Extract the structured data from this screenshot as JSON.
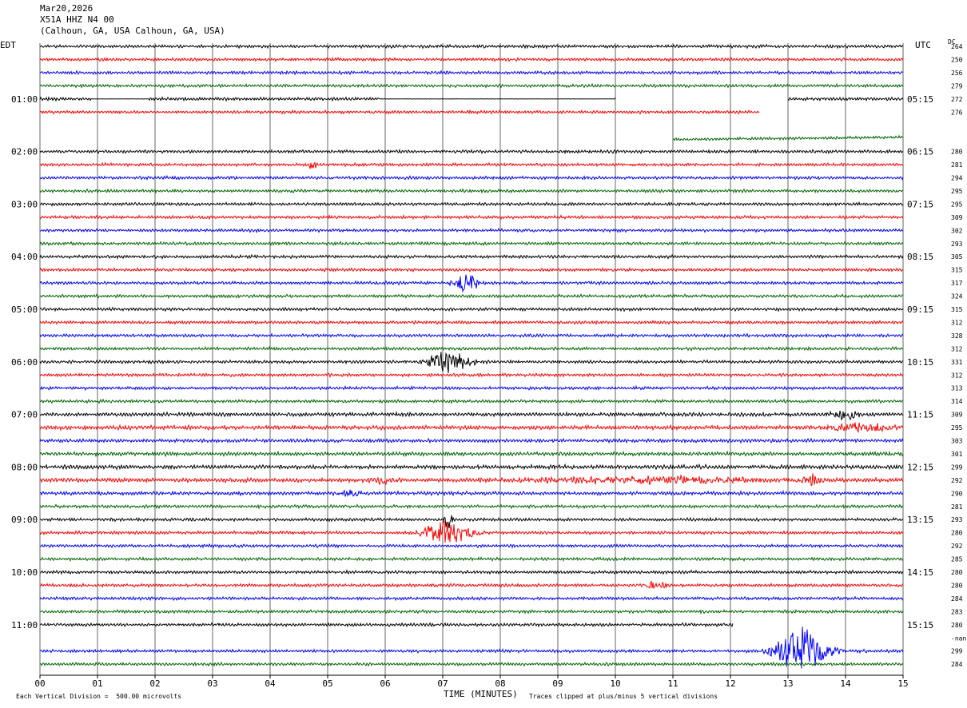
{
  "header": {
    "date": "Mar20,2026",
    "station": "X51A HHZ N4 00",
    "location": "(Calhoun, GA, USA Calhoun, GA, USA)"
  },
  "labels": {
    "left_tz": "EDT",
    "right_tz": "UTC",
    "dc_header": "DC",
    "xlabel": "TIME (MINUTES)",
    "scale_note": "Each Vertical Division =  500.00 microvolts",
    "clip_note": "Traces clipped at plus/minus 5 vertical divisions"
  },
  "colors": {
    "black": "#000000",
    "red": "#ff0000",
    "blue": "#0000ff",
    "green": "#006400",
    "grid": "#000000"
  },
  "chart_data": {
    "type": "line",
    "title": "X51A HHZ N4 00",
    "xlabel": "TIME (MINUTES)",
    "xlim": [
      0,
      15
    ],
    "x_ticks": [
      "00",
      "01",
      "02",
      "03",
      "04",
      "05",
      "06",
      "07",
      "08",
      "09",
      "10",
      "11",
      "12",
      "13",
      "14",
      "15"
    ],
    "left_hour_labels": [
      "01:00",
      "02:00",
      "03:00",
      "04:00",
      "05:00",
      "06:00",
      "07:00",
      "08:00",
      "09:00",
      "10:00",
      "11:00"
    ],
    "right_hour_labels": [
      "05:15",
      "06:15",
      "07:15",
      "08:15",
      "09:15",
      "10:15",
      "11:15",
      "12:15",
      "13:15",
      "14:15",
      "15:15"
    ],
    "lines_per_hour": 4,
    "minutes_per_line": 15,
    "trace_colors": [
      "black",
      "red",
      "blue",
      "green"
    ],
    "dc_offsets": [
      "264",
      "250",
      "256",
      "279",
      "272",
      "276",
      "",
      "",
      "280",
      "281",
      "294",
      "295",
      "295",
      "309",
      "302",
      "293",
      "305",
      "315",
      "317",
      "324",
      "315",
      "312",
      "328",
      "312",
      "331",
      "312",
      "313",
      "314",
      "309",
      "295",
      "303",
      "301",
      "299",
      "292",
      "290",
      "281",
      "293",
      "280",
      "292",
      "285",
      "280",
      "280",
      "284",
      "283",
      "280",
      "-nan",
      "299",
      "284"
    ],
    "traces": [
      {
        "start": 0,
        "end": 15,
        "amp": 1.3
      },
      {
        "start": 0,
        "end": 15,
        "amp": 1.3
      },
      {
        "start": 0,
        "end": 15,
        "amp": 1.3
      },
      {
        "start": 0,
        "end": 15,
        "amp": 1.3
      },
      {
        "start": 0,
        "end": 15,
        "amp": 1.3,
        "flat": [
          [
            0.9,
            1.9
          ],
          [
            5.9,
            10.0
          ]
        ],
        "gaps": [
          [
            10.0,
            13.0
          ]
        ]
      },
      {
        "start": 0,
        "end": 12.5,
        "amp": 1.3
      },
      {
        "start": 0,
        "end": 0,
        "amp": 0
      },
      {
        "start": 11.0,
        "end": 15,
        "amp": 1.2,
        "drift": -3
      },
      {
        "start": 0,
        "end": 15,
        "amp": 1.3
      },
      {
        "start": 0,
        "end": 15,
        "amp": 1.3,
        "events": [
          {
            "t": 4.75,
            "a": 9,
            "d": 0.08
          }
        ]
      },
      {
        "start": 0,
        "end": 15,
        "amp": 1.3
      },
      {
        "start": 0,
        "end": 15,
        "amp": 1.3
      },
      {
        "start": 0,
        "end": 15,
        "amp": 1.3
      },
      {
        "start": 0,
        "end": 15,
        "amp": 1.3
      },
      {
        "start": 0,
        "end": 15,
        "amp": 1.3
      },
      {
        "start": 0,
        "end": 15,
        "amp": 1.3
      },
      {
        "start": 0,
        "end": 15,
        "amp": 1.3
      },
      {
        "start": 0,
        "end": 15,
        "amp": 1.3
      },
      {
        "start": 0,
        "end": 15,
        "amp": 1.3,
        "events": [
          {
            "t": 7.4,
            "a": 12,
            "d": 0.3
          }
        ]
      },
      {
        "start": 0,
        "end": 15,
        "amp": 1.3
      },
      {
        "start": 0,
        "end": 15,
        "amp": 1.3
      },
      {
        "start": 0,
        "end": 15,
        "amp": 1.3
      },
      {
        "start": 0,
        "end": 15,
        "amp": 1.3
      },
      {
        "start": 0,
        "end": 15,
        "amp": 1.3
      },
      {
        "start": 0,
        "end": 15,
        "amp": 1.3,
        "events": [
          {
            "t": 7.1,
            "a": 14,
            "d": 0.5
          }
        ]
      },
      {
        "start": 0,
        "end": 15,
        "amp": 1.3
      },
      {
        "start": 0,
        "end": 15,
        "amp": 1.3
      },
      {
        "start": 0,
        "end": 15,
        "amp": 1.3
      },
      {
        "start": 0,
        "end": 15,
        "amp": 1.6,
        "events": [
          {
            "t": 14.0,
            "a": 6,
            "d": 0.35
          }
        ]
      },
      {
        "start": 0,
        "end": 15,
        "amp": 1.8,
        "events": [
          {
            "t": 14.3,
            "a": 5,
            "d": 0.9
          }
        ]
      },
      {
        "start": 0,
        "end": 15,
        "amp": 1.5
      },
      {
        "start": 0,
        "end": 15,
        "amp": 1.6
      },
      {
        "start": 0,
        "end": 15,
        "amp": 1.7
      },
      {
        "start": 0,
        "end": 15,
        "amp": 1.8,
        "events": [
          {
            "t": 6.0,
            "a": 4,
            "d": 0.3
          },
          {
            "t": 10.5,
            "a": 4,
            "d": 3.0
          },
          {
            "t": 13.4,
            "a": 7,
            "d": 0.2
          }
        ]
      },
      {
        "start": 0,
        "end": 15,
        "amp": 1.5,
        "events": [
          {
            "t": 5.4,
            "a": 4,
            "d": 0.3
          }
        ]
      },
      {
        "start": 0,
        "end": 15,
        "amp": 1.3
      },
      {
        "start": 0,
        "end": 15,
        "amp": 1.3,
        "events": [
          {
            "t": 7.1,
            "a": 12,
            "d": 0.12
          }
        ]
      },
      {
        "start": 0,
        "end": 15,
        "amp": 1.3,
        "events": [
          {
            "t": 7.1,
            "a": 15,
            "d": 0.6
          }
        ]
      },
      {
        "start": 0,
        "end": 15,
        "amp": 1.3
      },
      {
        "start": 0,
        "end": 15,
        "amp": 1.3
      },
      {
        "start": 0,
        "end": 15,
        "amp": 1.3
      },
      {
        "start": 0,
        "end": 15,
        "amp": 1.3,
        "events": [
          {
            "t": 10.7,
            "a": 5,
            "d": 0.25
          }
        ]
      },
      {
        "start": 0,
        "end": 15,
        "amp": 1.3
      },
      {
        "start": 0,
        "end": 15,
        "amp": 1.3
      },
      {
        "start": 0,
        "end": 12.05,
        "amp": 1.3
      },
      {
        "start": 0,
        "end": 0,
        "amp": 0
      },
      {
        "start": 0,
        "end": 15,
        "amp": 1.3,
        "events": [
          {
            "t": 13.25,
            "a": 30,
            "d": 0.6
          }
        ]
      },
      {
        "start": 0,
        "end": 15,
        "amp": 1.3
      }
    ]
  }
}
